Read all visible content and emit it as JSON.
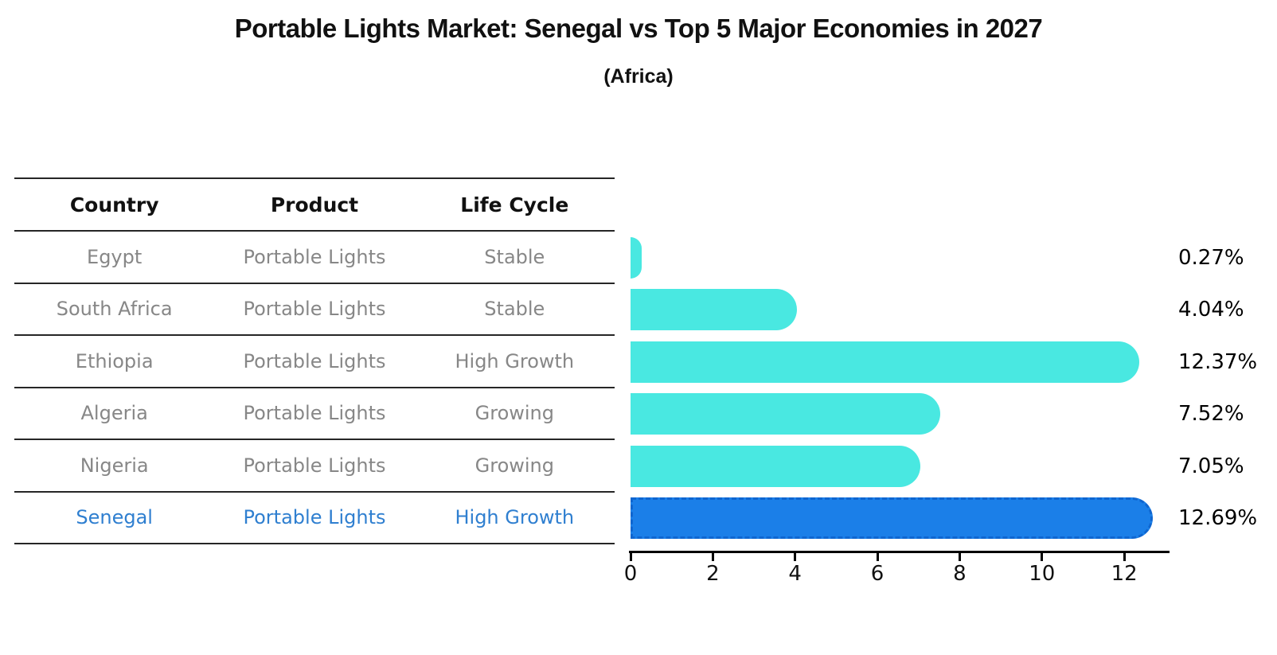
{
  "figure": {
    "title": "Portable Lights Market: Senegal vs Top 5 Major Economies in 2027",
    "subtitle": "(Africa)"
  },
  "table": {
    "headers": [
      "Country",
      "Product",
      "Life Cycle"
    ],
    "rows": [
      {
        "country": "Egypt",
        "product": "Portable Lights",
        "life_cycle": "Stable",
        "highlight": false
      },
      {
        "country": "South Africa",
        "product": "Portable Lights",
        "life_cycle": "Stable",
        "highlight": false
      },
      {
        "country": "Ethiopia",
        "product": "Portable Lights",
        "life_cycle": "High Growth",
        "highlight": false
      },
      {
        "country": "Algeria",
        "product": "Portable Lights",
        "life_cycle": "Growing",
        "highlight": false
      },
      {
        "country": "Nigeria",
        "product": "Portable Lights",
        "life_cycle": "Growing",
        "highlight": true
      }
    ],
    "rows_note": "last row below is highlighted",
    "highlight_row": {
      "country": "Senegal",
      "product": "Portable Lights",
      "life_cycle": "High Growth"
    }
  },
  "chart_data": {
    "type": "bar",
    "orientation": "horizontal",
    "title": "Portable Lights Market: Senegal vs Top 5 Major Economies in 2027",
    "subtitle": "(Africa)",
    "categories": [
      "Egypt",
      "South Africa",
      "Ethiopia",
      "Algeria",
      "Nigeria",
      "Senegal"
    ],
    "values": [
      0.27,
      4.04,
      12.37,
      7.52,
      7.05,
      12.69
    ],
    "value_labels": [
      "0.27%",
      "4.04%",
      "12.37%",
      "7.52%",
      "7.05%",
      "12.69%"
    ],
    "highlight_index": 5,
    "xticks": [
      0,
      2,
      4,
      6,
      8,
      10,
      12
    ],
    "xlim": [
      0,
      13.1
    ],
    "grid": false,
    "legend": false,
    "bar_color": "#49E8E1",
    "highlight_bar_color": "#1B7FE8",
    "highlight_text_color": "#2F7FD0"
  }
}
